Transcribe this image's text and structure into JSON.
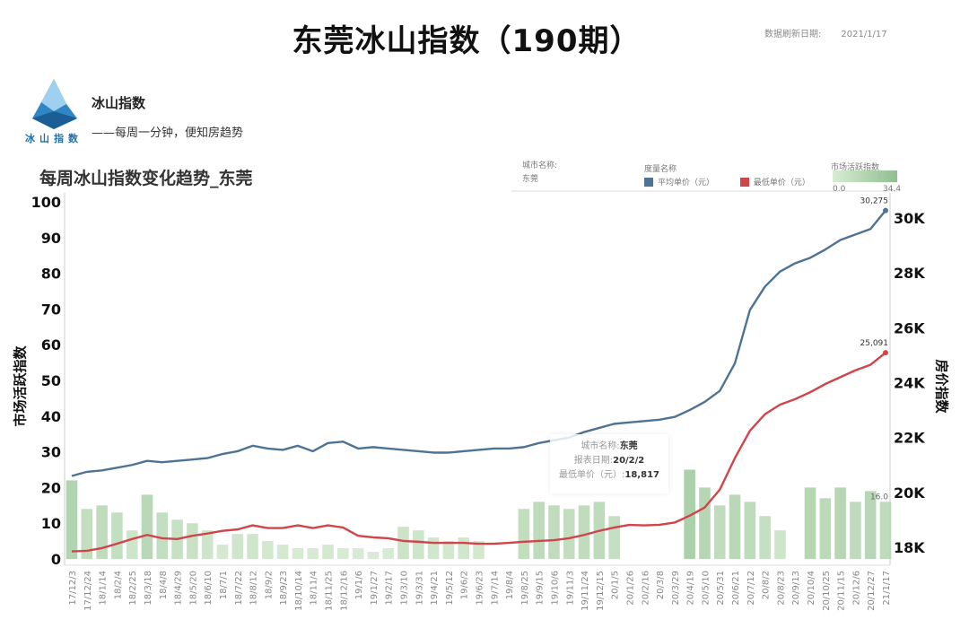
{
  "header": {
    "title": "东莞冰山指数（190期）",
    "refresh_label": "数据刷新日期:",
    "refresh_date": "2021/1/17"
  },
  "brand": {
    "name": "冰山指数",
    "slogan": "——每周一分钟，便知房趋势",
    "logo_text": "冰山指数"
  },
  "filters": {
    "city_label": "城市名称:",
    "city_value": "东莞",
    "measure_label": "度量名称",
    "activity_label": "市场活跃指数",
    "activity_min": "0.0",
    "activity_max": "34.4"
  },
  "colors": {
    "avg": "#4e7394",
    "min": "#d0454a",
    "bar_low": "#d9ecd4",
    "bar_high": "#8fbf8f"
  },
  "tooltip": {
    "city_label": "城市名称:",
    "city": "东莞",
    "date_label": "报表日期:",
    "date": "20/2/2",
    "price_label": "最低单价（元）:",
    "price": "18,817"
  },
  "chart_data": {
    "type": "line+bar",
    "title": "每周冰山指数变化趋势_东莞",
    "ylabel_left": "市场活跃指数",
    "ylabel_right": "房价指数",
    "ylim_left": [
      0,
      100
    ],
    "yticks_left": [
      "0",
      "10",
      "20",
      "30",
      "40",
      "50",
      "60",
      "70",
      "80",
      "90",
      "100"
    ],
    "ylim_right_thousands": [
      18,
      30
    ],
    "yticks_right": [
      "18K",
      "20K",
      "22K",
      "24K",
      "26K",
      "28K",
      "30K"
    ],
    "grid": false,
    "legend_placement": "top-right",
    "x": [
      "17/12/3",
      "17/12/24",
      "18/1/14",
      "18/2/4",
      "18/2/25",
      "18/3/18",
      "18/4/8",
      "18/4/29",
      "18/5/20",
      "18/6/10",
      "18/7/1",
      "18/7/22",
      "18/8/12",
      "18/9/2",
      "18/9/23",
      "18/10/14",
      "18/11/4",
      "18/11/25",
      "18/12/16",
      "19/1/6",
      "19/1/27",
      "19/2/17",
      "19/3/10",
      "19/3/31",
      "19/4/21",
      "19/5/12",
      "19/6/2",
      "19/6/23",
      "19/7/14",
      "19/8/4",
      "19/8/25",
      "19/9/15",
      "19/10/6",
      "19/11/3",
      "19/11/24",
      "19/12/15",
      "20/1/5",
      "20/1/26",
      "20/2/16",
      "20/3/8",
      "20/3/29",
      "20/4/19",
      "20/5/10",
      "20/5/31",
      "20/6/21",
      "20/7/12",
      "20/8/2",
      "20/8/23",
      "20/9/13",
      "20/10/4",
      "20/10/25",
      "20/11/15",
      "20/12/6",
      "20/12/27",
      "21/1/17"
    ],
    "series": [
      {
        "name": "平均单价（元）",
        "axis": "right",
        "values": [
          20600,
          20750,
          20800,
          20900,
          21000,
          21150,
          21100,
          21150,
          21200,
          21250,
          21400,
          21500,
          21700,
          21600,
          21550,
          21700,
          21500,
          21800,
          21850,
          21600,
          21650,
          21600,
          21550,
          21500,
          21450,
          21450,
          21500,
          21550,
          21600,
          21600,
          21650,
          21800,
          21900,
          22000,
          22200,
          22350,
          22500,
          22550,
          22600,
          22650,
          22750,
          23000,
          23300,
          23700,
          24700,
          26650,
          27500,
          28050,
          28350,
          28550,
          28850,
          29200,
          29400,
          29600,
          30275
        ]
      },
      {
        "name": "最低单价（元）",
        "axis": "right",
        "values": [
          17850,
          17870,
          17970,
          18130,
          18300,
          18450,
          18330,
          18300,
          18420,
          18500,
          18600,
          18650,
          18800,
          18700,
          18700,
          18800,
          18700,
          18800,
          18720,
          18420,
          18360,
          18330,
          18230,
          18200,
          18160,
          18160,
          18160,
          18130,
          18130,
          18160,
          18200,
          18230,
          18260,
          18330,
          18450,
          18600,
          18720,
          18817,
          18800,
          18820,
          18900,
          19150,
          19450,
          20100,
          21250,
          22250,
          22850,
          23200,
          23400,
          23650,
          23950,
          24200,
          24450,
          24650,
          25091
        ]
      },
      {
        "name": "市场活跃指数",
        "axis": "left",
        "type": "bar",
        "values": [
          22,
          14,
          15,
          13,
          8,
          18,
          13,
          11,
          10,
          8,
          4,
          7,
          7,
          5,
          4,
          3,
          3,
          4,
          3,
          3,
          2,
          3,
          9,
          8,
          6,
          5,
          6,
          5,
          0,
          0,
          14,
          16,
          15,
          14,
          15,
          16,
          12,
          0,
          0,
          0,
          0,
          25,
          20,
          15,
          18,
          16,
          12,
          8,
          0,
          20,
          17,
          20,
          16,
          19,
          16
        ]
      }
    ],
    "annotations": {
      "avg_last": "30,275",
      "min_last": "25,091",
      "bar_last": "16.0"
    }
  }
}
